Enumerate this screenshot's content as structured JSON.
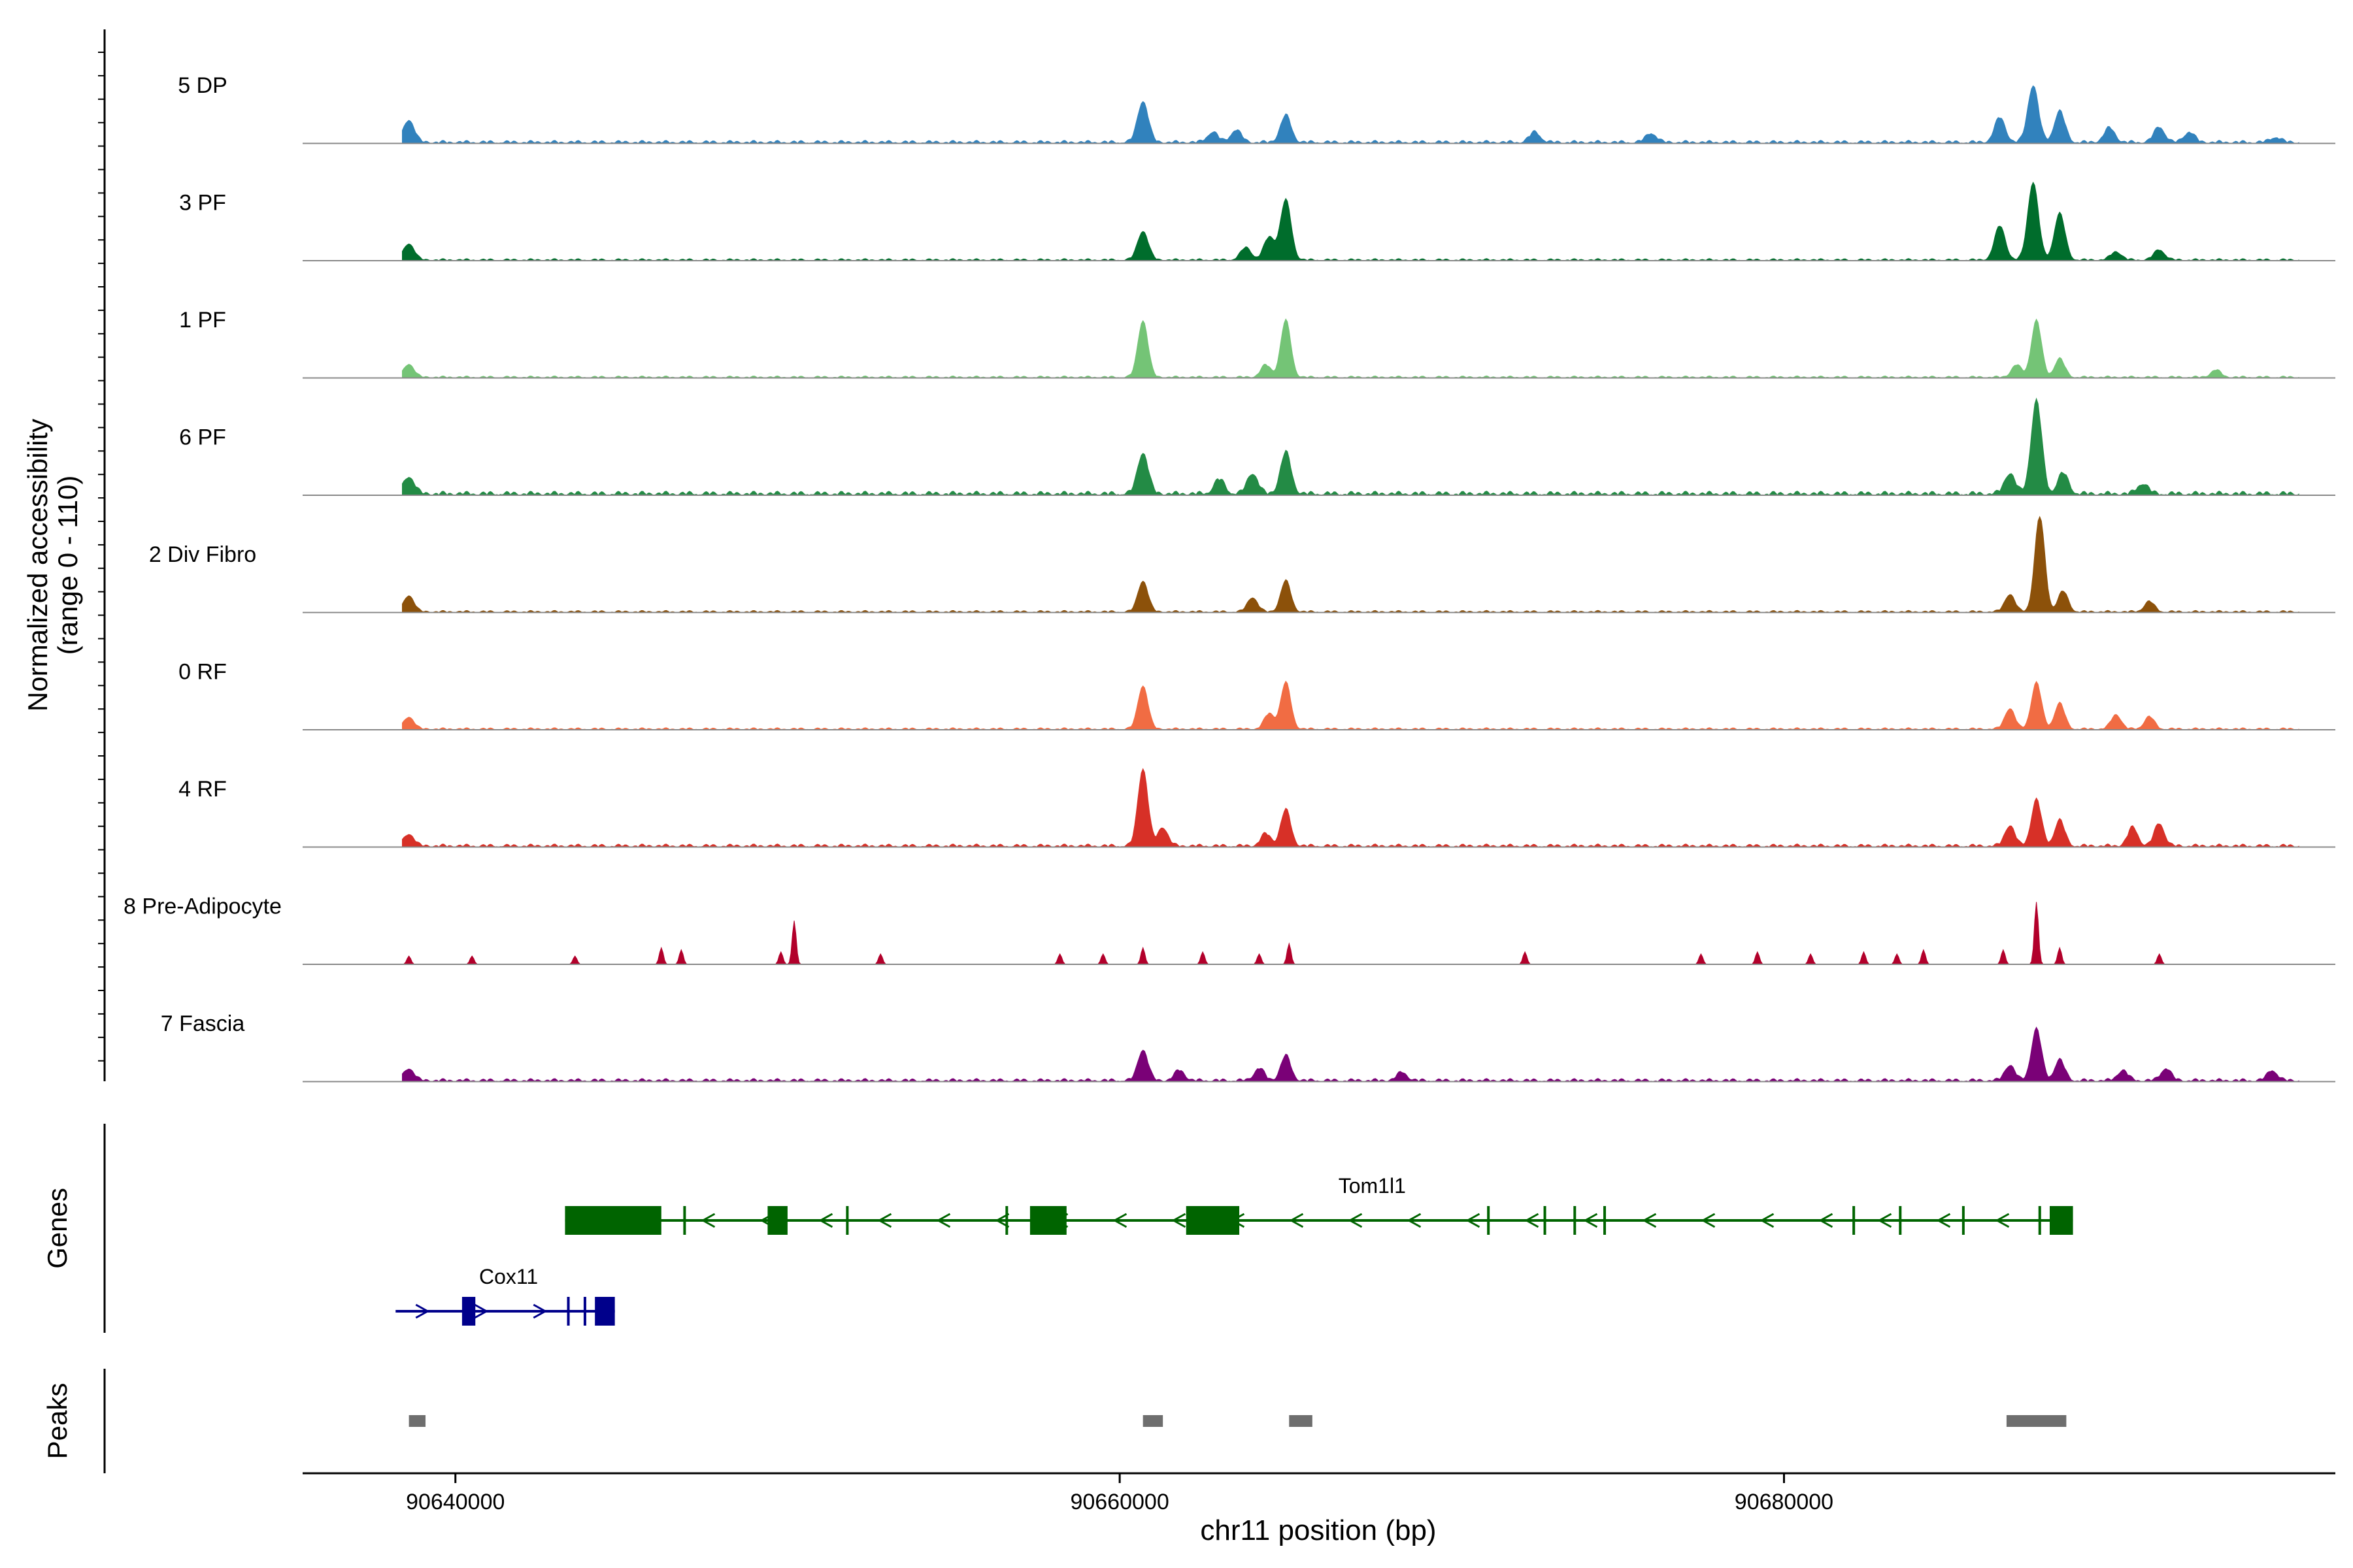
{
  "chart_data": {
    "type": "area",
    "title": "",
    "ylabel_line1": "Normalized accessibility",
    "ylabel_line2": "(range 0 - 110)",
    "xlabel": "chr11 position (bp)",
    "xlim": [
      90635400,
      90696600
    ],
    "ylim": [
      0,
      110
    ],
    "x_ticks": [
      90640000,
      90660000,
      90680000
    ],
    "x_tick_labels": [
      "90640000",
      "90660000",
      "90680000"
    ],
    "series": [
      {
        "name": "5 DP",
        "color": "#3182bd",
        "baseline": 3,
        "sigma": 160,
        "peaks": [
          [
            90638600,
            22
          ],
          [
            90660700,
            40
          ],
          [
            90662800,
            10
          ],
          [
            90663500,
            12
          ],
          [
            90665000,
            26
          ],
          [
            90672500,
            10
          ],
          [
            90676000,
            9
          ],
          [
            90686500,
            24
          ],
          [
            90687500,
            55
          ],
          [
            90688300,
            30
          ],
          [
            90689800,
            14
          ],
          [
            90691300,
            15
          ],
          [
            90692200,
            10
          ],
          [
            90694800,
            5
          ]
        ]
      },
      {
        "name": "3 PF",
        "color": "#006d2c",
        "baseline": 2,
        "sigma": 160,
        "peaks": [
          [
            90638600,
            16
          ],
          [
            90660700,
            28
          ],
          [
            90663800,
            12
          ],
          [
            90664500,
            22
          ],
          [
            90665000,
            58
          ],
          [
            90686500,
            33
          ],
          [
            90687500,
            75
          ],
          [
            90688300,
            45
          ],
          [
            90690000,
            8
          ],
          [
            90691300,
            10
          ]
        ]
      },
      {
        "name": "1 PF",
        "color": "#74c476",
        "baseline": 2,
        "sigma": 150,
        "peaks": [
          [
            90638600,
            13
          ],
          [
            90660700,
            55
          ],
          [
            90664400,
            12
          ],
          [
            90665000,
            55
          ],
          [
            90687000,
            12
          ],
          [
            90687600,
            55
          ],
          [
            90688300,
            18
          ],
          [
            90693000,
            7
          ]
        ]
      },
      {
        "name": "6 PF",
        "color": "#238b45",
        "baseline": 4,
        "sigma": 160,
        "peaks": [
          [
            90638600,
            17
          ],
          [
            90660700,
            40
          ],
          [
            90663000,
            14
          ],
          [
            90664000,
            20
          ],
          [
            90665000,
            40
          ],
          [
            90686800,
            20
          ],
          [
            90687600,
            90
          ],
          [
            90688400,
            20
          ],
          [
            90690800,
            10
          ]
        ]
      },
      {
        "name": "2 Div Fibro",
        "color": "#8c510a",
        "baseline": 2,
        "sigma": 150,
        "peaks": [
          [
            90638600,
            16
          ],
          [
            90660700,
            30
          ],
          [
            90664000,
            14
          ],
          [
            90665000,
            30
          ],
          [
            90686800,
            17
          ],
          [
            90687700,
            92
          ],
          [
            90688400,
            20
          ],
          [
            90691000,
            10
          ]
        ]
      },
      {
        "name": "0 RF",
        "color": "#f16c43",
        "baseline": 2,
        "sigma": 150,
        "peaks": [
          [
            90638600,
            12
          ],
          [
            90660700,
            42
          ],
          [
            90664500,
            15
          ],
          [
            90665000,
            45
          ],
          [
            90686800,
            20
          ],
          [
            90687600,
            45
          ],
          [
            90688300,
            25
          ],
          [
            90690000,
            14
          ],
          [
            90691000,
            12
          ]
        ]
      },
      {
        "name": "4 RF",
        "color": "#d73027",
        "baseline": 3,
        "sigma": 150,
        "peaks": [
          [
            90638600,
            12
          ],
          [
            90660700,
            75
          ],
          [
            90661300,
            18
          ],
          [
            90664400,
            12
          ],
          [
            90665000,
            35
          ],
          [
            90686800,
            20
          ],
          [
            90687600,
            45
          ],
          [
            90688300,
            25
          ],
          [
            90690500,
            18
          ],
          [
            90691300,
            22
          ]
        ]
      },
      {
        "name": "8 Pre-Adipocyte",
        "color": "#b2002b",
        "baseline": 0,
        "sigma": 60,
        "peaks": [
          [
            90638600,
            8
          ],
          [
            90640500,
            8
          ],
          [
            90643600,
            8
          ],
          [
            90646200,
            16
          ],
          [
            90646800,
            14
          ],
          [
            90649800,
            12
          ],
          [
            90650200,
            42
          ],
          [
            90652800,
            10
          ],
          [
            90658200,
            10
          ],
          [
            90659500,
            10
          ],
          [
            90660700,
            16
          ],
          [
            90662500,
            12
          ],
          [
            90664200,
            10
          ],
          [
            90665100,
            20
          ],
          [
            90672200,
            12
          ],
          [
            90677500,
            10
          ],
          [
            90679200,
            12
          ],
          [
            90680800,
            10
          ],
          [
            90682400,
            12
          ],
          [
            90683400,
            10
          ],
          [
            90684200,
            14
          ],
          [
            90686600,
            14
          ],
          [
            90687600,
            60
          ],
          [
            90688300,
            16
          ],
          [
            90691300,
            10
          ]
        ]
      },
      {
        "name": "7 Fascia",
        "color": "#7a0177",
        "baseline": 3,
        "sigma": 150,
        "peaks": [
          [
            90638600,
            12
          ],
          [
            90660700,
            30
          ],
          [
            90661800,
            10
          ],
          [
            90664200,
            12
          ],
          [
            90665000,
            24
          ],
          [
            90668500,
            8
          ],
          [
            90686800,
            15
          ],
          [
            90687600,
            50
          ],
          [
            90688300,
            20
          ],
          [
            90690200,
            10
          ],
          [
            90691500,
            12
          ],
          [
            90694700,
            10
          ]
        ]
      }
    ],
    "genes": [
      {
        "name": "Tom1l1",
        "color": "#006400",
        "strand": "-",
        "start": 90643300,
        "end": 90688700,
        "exons": [
          [
            90643300,
            90646200
          ],
          [
            90649400,
            90650000
          ],
          [
            90657300,
            90658400
          ],
          [
            90662000,
            90663600
          ],
          [
            90688000,
            90688700
          ]
        ],
        "ticks": [
          90646900,
          90651800,
          90656600,
          90671100,
          90672800,
          90673700,
          90674600,
          90682100,
          90683500,
          90685400,
          90687700
        ]
      },
      {
        "name": "Cox11",
        "color": "#00008b",
        "strand": "+",
        "start": 90638200,
        "end": 90644800,
        "exons": [
          [
            90640200,
            90640600
          ],
          [
            90644200,
            90644800
          ]
        ],
        "ticks": [
          90643400,
          90643900
        ]
      }
    ],
    "peaks": [
      [
        90638600,
        90639100
      ],
      [
        90660700,
        90661300
      ],
      [
        90665100,
        90665800
      ],
      [
        90686700,
        90688500
      ]
    ],
    "panel_labels": {
      "genes": "Genes",
      "peaks": "Peaks"
    }
  }
}
